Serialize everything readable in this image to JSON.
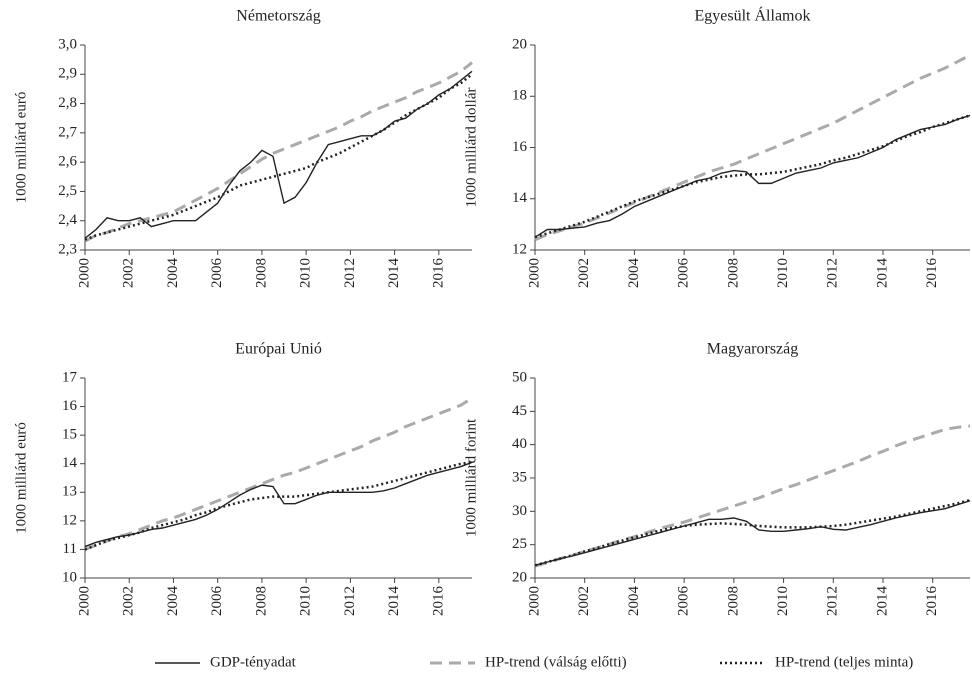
{
  "legend": [
    {
      "name": "GDP-tényadat",
      "color": "#222222",
      "style": "solid"
    },
    {
      "name": "HP-trend (válság előtti)",
      "color": "#aaaaaa",
      "style": "dashed"
    },
    {
      "name": "HP-trend (teljes minta)",
      "color": "#222222",
      "style": "dotted"
    }
  ],
  "chart_data": [
    {
      "type": "line",
      "title": "Németország",
      "ylabel": "1000 milliárd euró",
      "x": [
        2000,
        2000.5,
        2001,
        2001.5,
        2002,
        2002.5,
        2003,
        2003.5,
        2004,
        2004.5,
        2005,
        2005.5,
        2006,
        2006.5,
        2007,
        2007.5,
        2008,
        2008.5,
        2009,
        2009.5,
        2010,
        2010.5,
        2011,
        2011.5,
        2012,
        2012.5,
        2013,
        2013.5,
        2014,
        2014.5,
        2015,
        2015.5,
        2016,
        2016.5,
        2017,
        2017.5
      ],
      "xlim": [
        2000,
        2017.5
      ],
      "xticks": [
        2000,
        2002,
        2004,
        2006,
        2008,
        2010,
        2012,
        2014,
        2016
      ],
      "ylim": [
        2.3,
        3.0
      ],
      "yticks": [
        {
          "value": 2.3,
          "label": "2,3"
        },
        {
          "value": 2.4,
          "label": "2,4"
        },
        {
          "value": 2.5,
          "label": "2,5"
        },
        {
          "value": 2.6,
          "label": "2,6"
        },
        {
          "value": 2.7,
          "label": "2,7"
        },
        {
          "value": 2.8,
          "label": "2,8"
        },
        {
          "value": 2.9,
          "label": "2,9"
        },
        {
          "value": 3.0,
          "label": "3,0"
        }
      ],
      "series": [
        {
          "values": [
            2.34,
            2.37,
            2.41,
            2.4,
            2.4,
            2.41,
            2.38,
            2.39,
            2.4,
            2.4,
            2.4,
            2.43,
            2.46,
            2.52,
            2.57,
            2.6,
            2.64,
            2.62,
            2.46,
            2.48,
            2.53,
            2.6,
            2.66,
            2.67,
            2.68,
            2.69,
            2.69,
            2.71,
            2.74,
            2.75,
            2.78,
            2.8,
            2.83,
            2.85,
            2.88,
            2.91
          ]
        },
        {
          "values": [
            2.33,
            2.35,
            2.36,
            2.375,
            2.39,
            2.4,
            2.41,
            2.42,
            2.43,
            2.45,
            2.47,
            2.49,
            2.51,
            2.535,
            2.56,
            2.585,
            2.61,
            2.63,
            2.645,
            2.66,
            2.675,
            2.69,
            2.705,
            2.72,
            2.74,
            2.755,
            2.775,
            2.79,
            2.805,
            2.82,
            2.84,
            2.855,
            2.87,
            2.89,
            2.91,
            2.94
          ]
        },
        {
          "values": [
            2.335,
            2.35,
            2.36,
            2.37,
            2.38,
            2.39,
            2.4,
            2.41,
            2.42,
            2.435,
            2.45,
            2.465,
            2.48,
            2.5,
            2.52,
            2.53,
            2.54,
            2.55,
            2.56,
            2.57,
            2.58,
            2.6,
            2.615,
            2.63,
            2.65,
            2.67,
            2.69,
            2.71,
            2.735,
            2.76,
            2.78,
            2.8,
            2.82,
            2.85,
            2.87,
            2.9
          ]
        }
      ]
    },
    {
      "type": "line",
      "title": "Egyesült Államok",
      "ylabel": "1000 milliárd dollár",
      "x": [
        2000,
        2000.5,
        2001,
        2001.5,
        2002,
        2002.5,
        2003,
        2003.5,
        2004,
        2004.5,
        2005,
        2005.5,
        2006,
        2006.5,
        2007,
        2007.5,
        2008,
        2008.5,
        2009,
        2009.5,
        2010,
        2010.5,
        2011,
        2011.5,
        2012,
        2012.5,
        2013,
        2013.5,
        2014,
        2014.5,
        2015,
        2015.5,
        2016,
        2016.5,
        2017,
        2017.5
      ],
      "xlim": [
        2000,
        2017.5
      ],
      "xticks": [
        2000,
        2002,
        2004,
        2006,
        2008,
        2010,
        2012,
        2014,
        2016
      ],
      "ylim": [
        12,
        20
      ],
      "yticks": [
        12,
        14,
        16,
        18,
        20
      ],
      "series": [
        {
          "values": [
            12.5,
            12.8,
            12.8,
            12.85,
            12.9,
            13.05,
            13.15,
            13.4,
            13.7,
            13.9,
            14.1,
            14.3,
            14.5,
            14.7,
            14.8,
            15.0,
            15.1,
            15.05,
            14.6,
            14.6,
            14.8,
            15.0,
            15.1,
            15.2,
            15.4,
            15.5,
            15.6,
            15.8,
            16.0,
            16.3,
            16.5,
            16.7,
            16.8,
            16.9,
            17.1,
            17.25
          ]
        },
        {
          "values": [
            12.4,
            12.6,
            12.75,
            12.9,
            13.05,
            13.25,
            13.45,
            13.65,
            13.85,
            14.05,
            14.25,
            14.45,
            14.65,
            14.85,
            15.05,
            15.2,
            15.35,
            15.55,
            15.75,
            15.95,
            16.15,
            16.35,
            16.55,
            16.75,
            16.95,
            17.2,
            17.45,
            17.7,
            17.95,
            18.2,
            18.45,
            18.7,
            18.9,
            19.1,
            19.35,
            19.6
          ]
        },
        {
          "values": [
            12.5,
            12.65,
            12.8,
            12.95,
            13.1,
            13.3,
            13.5,
            13.7,
            13.9,
            14.05,
            14.2,
            14.35,
            14.5,
            14.65,
            14.75,
            14.85,
            14.9,
            14.95,
            14.95,
            15.0,
            15.05,
            15.15,
            15.25,
            15.35,
            15.5,
            15.6,
            15.75,
            15.9,
            16.05,
            16.25,
            16.45,
            16.6,
            16.8,
            16.95,
            17.1,
            17.25
          ]
        }
      ]
    },
    {
      "type": "line",
      "title": "Európai Unió",
      "ylabel": "1000 milliárd euró",
      "x": [
        2000,
        2000.5,
        2001,
        2001.5,
        2002,
        2002.5,
        2003,
        2003.5,
        2004,
        2004.5,
        2005,
        2005.5,
        2006,
        2006.5,
        2007,
        2007.5,
        2008,
        2008.5,
        2009,
        2009.5,
        2010,
        2010.5,
        2011,
        2011.5,
        2012,
        2012.5,
        2013,
        2013.5,
        2014,
        2014.5,
        2015,
        2015.5,
        2016,
        2016.5,
        2017,
        2017.5
      ],
      "xlim": [
        2000,
        2017.5
      ],
      "xticks": [
        2000,
        2002,
        2004,
        2006,
        2008,
        2010,
        2012,
        2014,
        2016
      ],
      "ylim": [
        10,
        17
      ],
      "yticks": [
        10,
        11,
        12,
        13,
        14,
        15,
        16,
        17
      ],
      "series": [
        {
          "values": [
            11.1,
            11.25,
            11.35,
            11.45,
            11.5,
            11.6,
            11.7,
            11.75,
            11.85,
            11.95,
            12.05,
            12.2,
            12.4,
            12.65,
            12.9,
            13.1,
            13.25,
            13.2,
            12.6,
            12.6,
            12.75,
            12.9,
            13.0,
            13.0,
            13.0,
            13.0,
            13.0,
            13.05,
            13.15,
            13.3,
            13.45,
            13.6,
            13.7,
            13.8,
            13.9,
            14.05
          ]
        },
        {
          "values": [
            11.0,
            11.15,
            11.3,
            11.45,
            11.55,
            11.7,
            11.85,
            12.0,
            12.1,
            12.25,
            12.4,
            12.55,
            12.7,
            12.85,
            13.0,
            13.15,
            13.3,
            13.45,
            13.6,
            13.7,
            13.85,
            14.0,
            14.15,
            14.3,
            14.45,
            14.6,
            14.8,
            14.95,
            15.1,
            15.3,
            15.45,
            15.6,
            15.75,
            15.9,
            16.05,
            16.3
          ]
        },
        {
          "values": [
            11.0,
            11.15,
            11.3,
            11.4,
            11.5,
            11.6,
            11.75,
            11.85,
            11.95,
            12.05,
            12.2,
            12.3,
            12.45,
            12.55,
            12.65,
            12.75,
            12.8,
            12.85,
            12.85,
            12.85,
            12.9,
            12.95,
            13.0,
            13.05,
            13.1,
            13.15,
            13.2,
            13.3,
            13.4,
            13.5,
            13.6,
            13.7,
            13.8,
            13.9,
            14.0,
            14.05
          ]
        }
      ]
    },
    {
      "type": "line",
      "title": "Magyarország",
      "ylabel": "1000 milliárd forint",
      "x": [
        2000,
        2000.5,
        2001,
        2001.5,
        2002,
        2002.5,
        2003,
        2003.5,
        2004,
        2004.5,
        2005,
        2005.5,
        2006,
        2006.5,
        2007,
        2007.5,
        2008,
        2008.5,
        2009,
        2009.5,
        2010,
        2010.5,
        2011,
        2011.5,
        2012,
        2012.5,
        2013,
        2013.5,
        2014,
        2014.5,
        2015,
        2015.5,
        2016,
        2016.5,
        2017,
        2017.5
      ],
      "xlim": [
        2000,
        2017.5
      ],
      "xticks": [
        2000,
        2002,
        2004,
        2006,
        2008,
        2010,
        2012,
        2014,
        2016
      ],
      "ylim": [
        20,
        50
      ],
      "yticks": [
        20,
        25,
        30,
        35,
        40,
        45,
        50
      ],
      "series": [
        {
          "values": [
            21.9,
            22.4,
            22.9,
            23.3,
            23.8,
            24.3,
            24.8,
            25.3,
            25.8,
            26.3,
            26.8,
            27.3,
            27.8,
            28.3,
            28.8,
            28.8,
            29.0,
            28.5,
            27.2,
            27.0,
            27.0,
            27.2,
            27.4,
            27.7,
            27.3,
            27.2,
            27.6,
            28.0,
            28.5,
            29.0,
            29.4,
            29.8,
            30.1,
            30.4,
            31.0,
            31.6
          ]
        },
        {
          "values": [
            21.8,
            22.3,
            22.9,
            23.4,
            24.0,
            24.5,
            25.1,
            25.7,
            26.2,
            26.8,
            27.4,
            27.9,
            28.4,
            29.0,
            29.6,
            30.2,
            30.8,
            31.4,
            32.0,
            32.7,
            33.4,
            34.0,
            34.7,
            35.4,
            36.1,
            36.8,
            37.5,
            38.3,
            39.0,
            39.8,
            40.5,
            41.1,
            41.7,
            42.3,
            42.6,
            42.8
          ]
        },
        {
          "values": [
            21.9,
            22.4,
            22.9,
            23.4,
            24.0,
            24.5,
            25.1,
            25.6,
            26.1,
            26.6,
            27.1,
            27.5,
            27.8,
            28.0,
            28.1,
            28.2,
            28.1,
            28.0,
            27.8,
            27.7,
            27.6,
            27.6,
            27.6,
            27.7,
            27.8,
            28.0,
            28.3,
            28.6,
            28.9,
            29.2,
            29.6,
            30.0,
            30.4,
            30.8,
            31.2,
            31.7
          ]
        }
      ]
    }
  ]
}
